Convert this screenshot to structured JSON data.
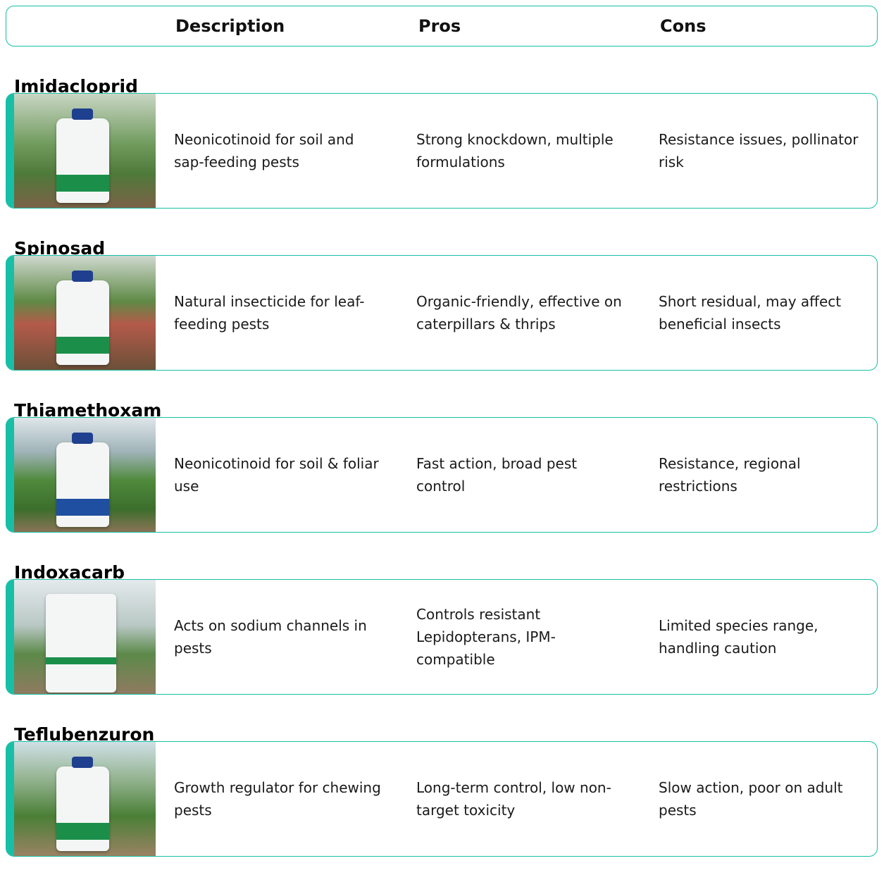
{
  "header": {
    "description": "Description",
    "pros": "Pros",
    "cons": "Cons"
  },
  "accent_color": "#17bfa6",
  "rows": [
    {
      "name": "Imidacloprid",
      "description": "Neonicotinoid for soil and sap-feeding pests",
      "pros": "Strong knockdown, multiple formulations",
      "cons": "Resistance issues, pollinator risk",
      "image": "imidacloprid-jug-greenhouse"
    },
    {
      "name": "Spinosad",
      "description": "Natural insecticide for leaf-feeding pests",
      "pros": "Organic-friendly, effective on caterpillars & thrips",
      "cons": "Short residual, may affect beneficial insects",
      "image": "spinosad-spray-bottle-garden"
    },
    {
      "name": "Thiamethoxam",
      "description": "Neonicotinoid for soil & foliar use",
      "pros": "Fast action, broad pest control",
      "cons": "Resistance, regional restrictions",
      "image": "thiamethoxam-bottle-field"
    },
    {
      "name": "Indoxacarb",
      "description": "Acts on sodium channels in pests",
      "pros": "Controls resistant Lepidopterans, IPM-compatible",
      "cons": "Limited species range, handling caution",
      "image": "indoxacarb-bag-greenhouse"
    },
    {
      "name": "Teflubenzuron",
      "description": "Growth regulator for chewing pests",
      "pros": "Long-term control, low non-target toxicity",
      "cons": "Slow action, poor on adult pests",
      "image": "teflubenzuron-bottle-field"
    }
  ]
}
